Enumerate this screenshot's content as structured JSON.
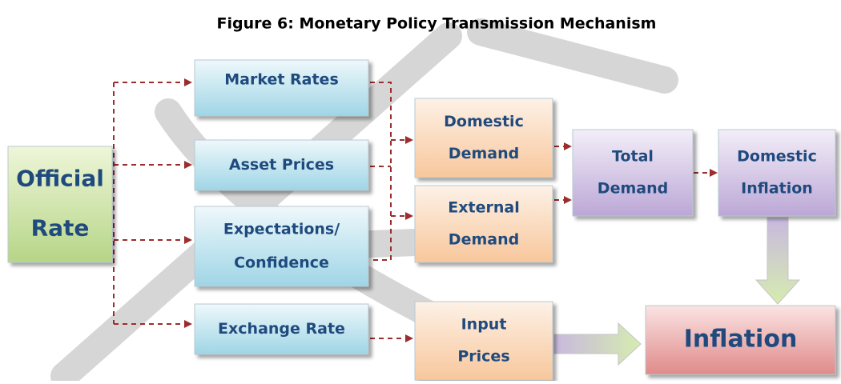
{
  "title": "Figure 6: Monetary Policy Transmission Mechanism",
  "nodes": [
    {
      "lines": [
        "Official",
        "Rate"
      ]
    },
    {
      "lines": [
        "Market Rates"
      ]
    },
    {
      "lines": [
        "Asset Prices"
      ]
    },
    {
      "lines": [
        "Expectations/",
        "Confidence"
      ]
    },
    {
      "lines": [
        "Exchange Rate"
      ]
    },
    {
      "lines": [
        "Domestic",
        "Demand"
      ]
    },
    {
      "lines": [
        "External",
        "Demand"
      ]
    },
    {
      "lines": [
        "Total",
        "Demand"
      ]
    },
    {
      "lines": [
        "Domestic",
        "Inflation"
      ]
    },
    {
      "lines": [
        "Input",
        "Prices"
      ]
    },
    {
      "lines": [
        "Inflation"
      ]
    }
  ]
}
